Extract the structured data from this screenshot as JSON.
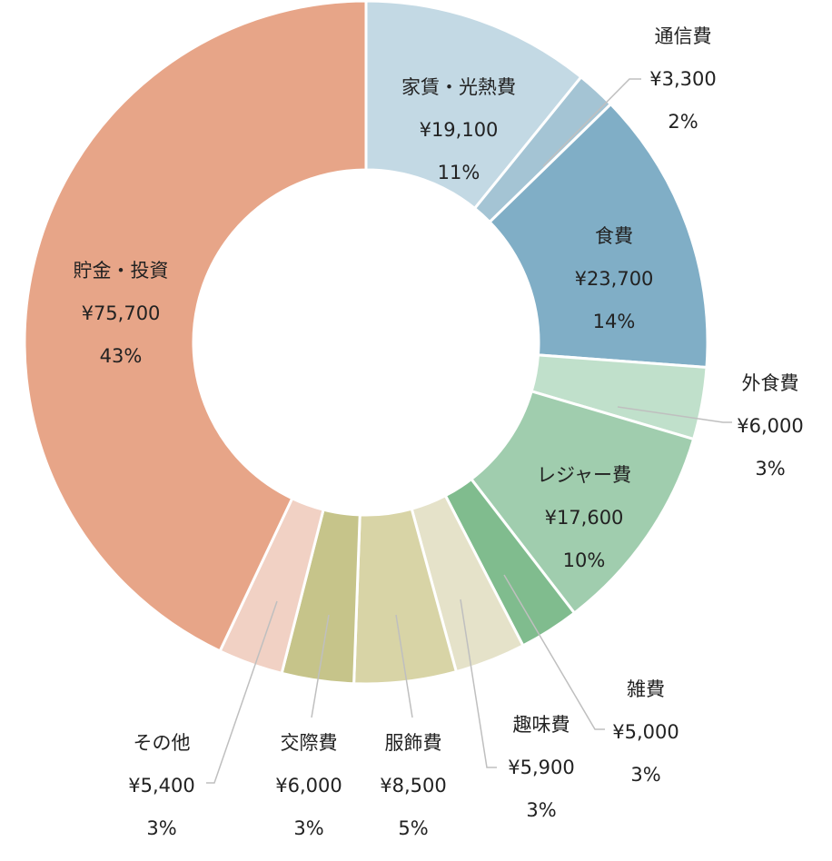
{
  "chart_data": {
    "type": "pie",
    "subtype": "donut",
    "title": "",
    "legend": "none",
    "slices": [
      {
        "label": "家賃・光熱費",
        "amount": "¥19,100",
        "value": 19100,
        "percent": "11%",
        "color": "#c3d9e4"
      },
      {
        "label": "通信費",
        "amount": "¥3,300",
        "value": 3300,
        "percent": "2%",
        "color": "#a4c4d4"
      },
      {
        "label": "食費",
        "amount": "¥23,700",
        "value": 23700,
        "percent": "14%",
        "color": "#80aec6"
      },
      {
        "label": "外食費",
        "amount": "¥6,000",
        "value": 6000,
        "percent": "3%",
        "color": "#c0e0cb"
      },
      {
        "label": "レジャー費",
        "amount": "¥17,600",
        "value": 17600,
        "percent": "10%",
        "color": "#a0cdae"
      },
      {
        "label": "雑費",
        "amount": "¥5,000",
        "value": 5000,
        "percent": "3%",
        "color": "#80bc8e"
      },
      {
        "label": "趣味費",
        "amount": "¥5,900",
        "value": 5900,
        "percent": "3%",
        "color": "#e5e2c9"
      },
      {
        "label": "服飾費",
        "amount": "¥8,500",
        "value": 8500,
        "percent": "5%",
        "color": "#d8d4a6"
      },
      {
        "label": "交際費",
        "amount": "¥6,000",
        "value": 6000,
        "percent": "3%",
        "color": "#c6c48a"
      },
      {
        "label": "その他",
        "amount": "¥5,400",
        "value": 5400,
        "percent": "3%",
        "color": "#f1d1c4"
      },
      {
        "label": "貯金・投資",
        "amount": "¥75,700",
        "value": 75700,
        "percent": "43%",
        "color": "#e7a588"
      }
    ]
  }
}
